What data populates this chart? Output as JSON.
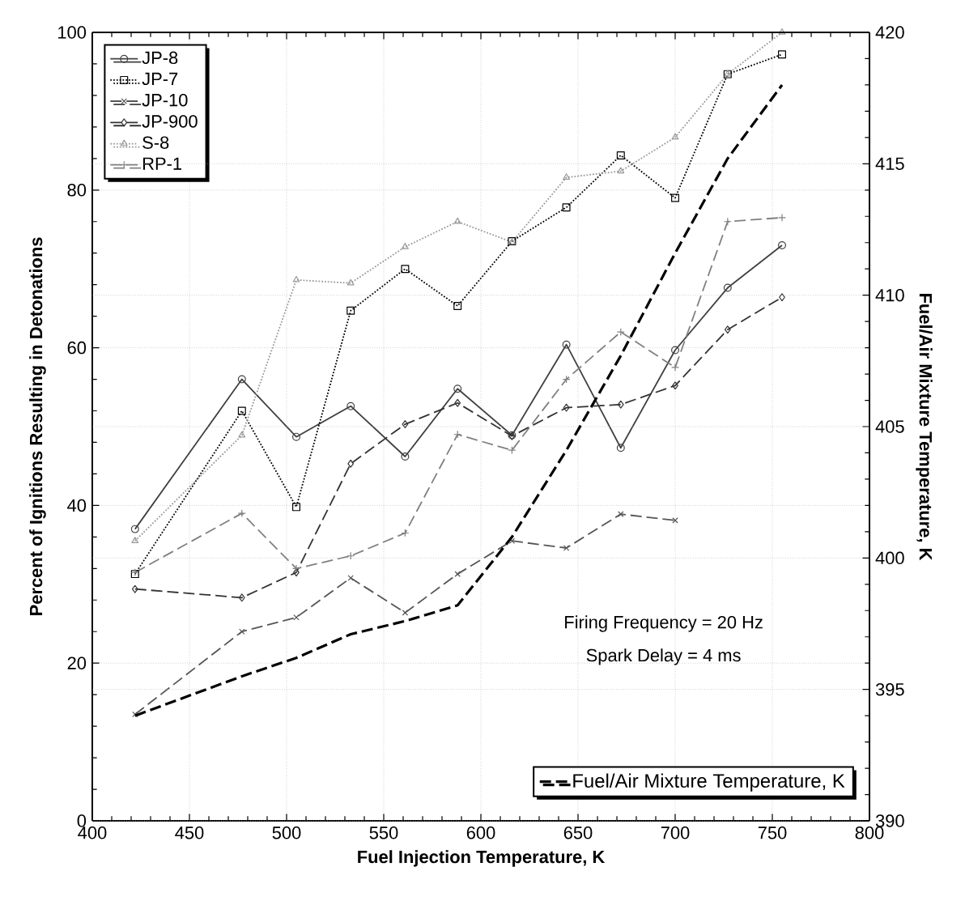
{
  "chart_data": {
    "type": "line",
    "xlabel": "Fuel Injection Temperature, K",
    "ylabel": "Percent of Ignitions Resulting in Detonations",
    "y2label": "Fuel/Air Mixture Temperature, K",
    "x": [
      422,
      477,
      505,
      533,
      561,
      588,
      616,
      644,
      672,
      700,
      727,
      755
    ],
    "xlim": [
      400,
      800
    ],
    "xticks": [
      400,
      450,
      500,
      550,
      600,
      650,
      700,
      750,
      800
    ],
    "ylim": [
      0,
      100
    ],
    "yticks": [
      0,
      20,
      40,
      60,
      80,
      100
    ],
    "y2lim": [
      390,
      420
    ],
    "y2ticks": [
      390,
      395,
      400,
      405,
      410,
      415,
      420
    ],
    "grid": true,
    "legend": "top left",
    "annotations": [
      "Firing Frequency = 20 Hz",
      "Spark Delay = 4 ms"
    ],
    "series": [
      {
        "name": "JP-8",
        "color": "#404040",
        "marker": "circle",
        "line_style": "solid",
        "values": [
          37,
          56,
          48.7,
          52.6,
          46.2,
          54.8,
          48.9,
          60.4,
          47.3,
          59.7,
          67.6,
          73
        ]
      },
      {
        "name": "JP-7",
        "color": "#000000",
        "marker": "square",
        "line_style": "dotted",
        "values": [
          31.3,
          52,
          39.8,
          64.7,
          70,
          65.3,
          73.5,
          77.8,
          84.4,
          79,
          94.7,
          97.2
        ]
      },
      {
        "name": "JP-10",
        "color": "#555555",
        "marker": "cross",
        "line_style": "dashed",
        "values": [
          13.5,
          24,
          25.8,
          30.8,
          26.4,
          31.3,
          35.5,
          34.6,
          38.9,
          38.1,
          null,
          null
        ]
      },
      {
        "name": "JP-900",
        "color": "#333333",
        "marker": "diamond",
        "line_style": "dashed",
        "values": [
          29.4,
          28.3,
          31.5,
          45.3,
          50.3,
          53,
          48.8,
          52.4,
          52.8,
          55.2,
          62.3,
          66.4
        ]
      },
      {
        "name": "S-8",
        "color": "#999999",
        "marker": "triangle",
        "line_style": "dotted",
        "values": [
          35.5,
          48.9,
          68.6,
          68.2,
          72.8,
          76,
          73.4,
          81.6,
          82.4,
          86.7,
          94.7,
          100
        ]
      },
      {
        "name": "RP-1",
        "color": "#808080",
        "marker": "plus",
        "line_style": "dashed",
        "values": [
          31.5,
          39,
          32,
          33.6,
          36.5,
          49,
          47,
          56,
          62,
          57.5,
          76,
          76.5
        ]
      },
      {
        "name": "Fuel/Air Mixture Temperature, K",
        "color": "#000000",
        "marker": "none",
        "line_style": "dashed",
        "axis": "y2",
        "values": [
          394,
          395.5,
          396.2,
          397.1,
          397.6,
          398.2,
          400.8,
          404.1,
          407.7,
          411.6,
          415.2,
          418
        ]
      }
    ]
  }
}
